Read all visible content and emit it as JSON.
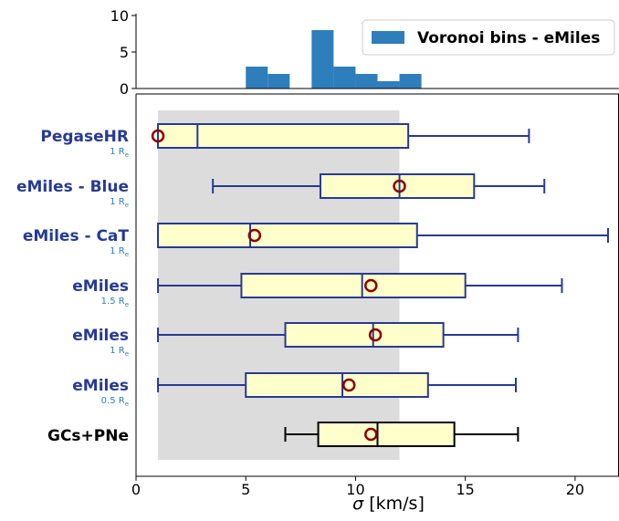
{
  "chart_data": [
    {
      "type": "bar",
      "series": [
        {
          "name": "Voronoi bins - eMiles"
        }
      ],
      "bin_edges": [
        5,
        6,
        7,
        8,
        9,
        10,
        11,
        12,
        13
      ],
      "counts": [
        3,
        2,
        0,
        8,
        3,
        2,
        1,
        2
      ],
      "xlim": [
        0,
        22
      ],
      "ylim": [
        0,
        10
      ],
      "yticks": [
        "0",
        "5",
        "10"
      ],
      "legend": "top-right",
      "colors": {
        "bar": "#2f7ebc",
        "axis": "#000000"
      }
    },
    {
      "type": "boxplot",
      "xlabel_symbol": "σ",
      "xlabel_unit": "[km/s]",
      "xlim": [
        0,
        22
      ],
      "xticks": [
        "0",
        "5",
        "10",
        "15",
        "20"
      ],
      "shaded_band": [
        1,
        12
      ],
      "rows": [
        {
          "label": "PegaseHR",
          "sub": "1 R",
          "sub_sub": "e",
          "whisker_low": 1.0,
          "q1": 1.0,
          "median": 2.8,
          "q3": 12.4,
          "whisker_high": 17.9,
          "marker": 1.0,
          "color": "#273a91"
        },
        {
          "label": "eMiles - Blue",
          "sub": "1 R",
          "sub_sub": "e",
          "whisker_low": 3.5,
          "q1": 8.4,
          "median": 12.0,
          "q3": 15.4,
          "whisker_high": 18.6,
          "marker": 12.0,
          "color": "#273a91"
        },
        {
          "label": "eMiles - CaT",
          "sub": "1 R",
          "sub_sub": "e",
          "whisker_low": 1.0,
          "q1": 1.0,
          "median": 5.2,
          "q3": 12.8,
          "whisker_high": 21.5,
          "marker": 5.4,
          "color": "#273a91"
        },
        {
          "label": "eMiles",
          "sub": "1.5 R",
          "sub_sub": "e",
          "whisker_low": 1.0,
          "q1": 4.8,
          "median": 10.3,
          "q3": 15.0,
          "whisker_high": 19.4,
          "marker": 10.7,
          "color": "#273a91"
        },
        {
          "label": "eMiles",
          "sub": "1 R",
          "sub_sub": "e",
          "whisker_low": 1.0,
          "q1": 6.8,
          "median": 10.8,
          "q3": 14.0,
          "whisker_high": 17.4,
          "marker": 10.9,
          "color": "#273a91"
        },
        {
          "label": "eMiles",
          "sub": "0.5 R",
          "sub_sub": "e",
          "whisker_low": 1.0,
          "q1": 5.0,
          "median": 9.4,
          "q3": 13.3,
          "whisker_high": 17.3,
          "marker": 9.7,
          "color": "#273a91"
        },
        {
          "label": "GCs+PNe",
          "sub": "",
          "sub_sub": "",
          "whisker_low": 6.8,
          "q1": 8.3,
          "median": 11.0,
          "q3": 14.5,
          "whisker_high": 17.4,
          "marker": 10.7,
          "color": "#000000"
        }
      ],
      "colors": {
        "box_fill": "#ffffcc",
        "band": "#dcdcdc",
        "marker": "#8b0000",
        "sub_label": "#2f7ebc"
      }
    }
  ]
}
